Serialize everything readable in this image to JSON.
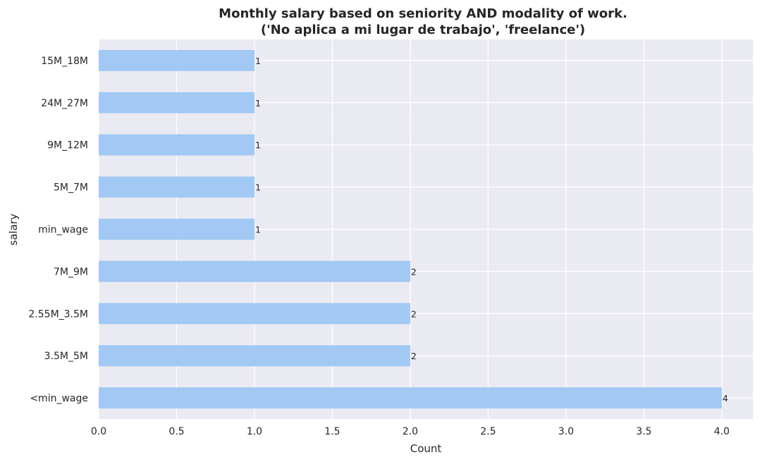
{
  "chart_data": {
    "type": "bar",
    "orientation": "horizontal",
    "title_lines": [
      "Monthly salary based on seniority AND modality of work.",
      "('No aplica a mi lugar de trabajo', 'freelance')"
    ],
    "xlabel": "Count",
    "ylabel": "salary",
    "categories": [
      "15M_18M",
      "24M_27M",
      "9M_12M",
      "5M_7M",
      "min_wage",
      "7M_9M",
      "2.55M_3.5M",
      "3.5M_5M",
      "<min_wage"
    ],
    "values": [
      1,
      1,
      1,
      1,
      1,
      2,
      2,
      2,
      4
    ],
    "data_labels": [
      "1",
      "1",
      "1",
      "1",
      "1",
      "2",
      "2",
      "2",
      "4"
    ],
    "xlim": [
      0,
      4.2
    ],
    "xticks": [
      "0.0",
      "0.5",
      "1.0",
      "1.5",
      "2.0",
      "2.5",
      "3.0",
      "3.5",
      "4.0"
    ],
    "grid": true,
    "colors": {
      "bar": "#a1c9f4",
      "plot_background": "#eaeaf2",
      "grid": "#ffffff",
      "text": "#262626"
    }
  }
}
